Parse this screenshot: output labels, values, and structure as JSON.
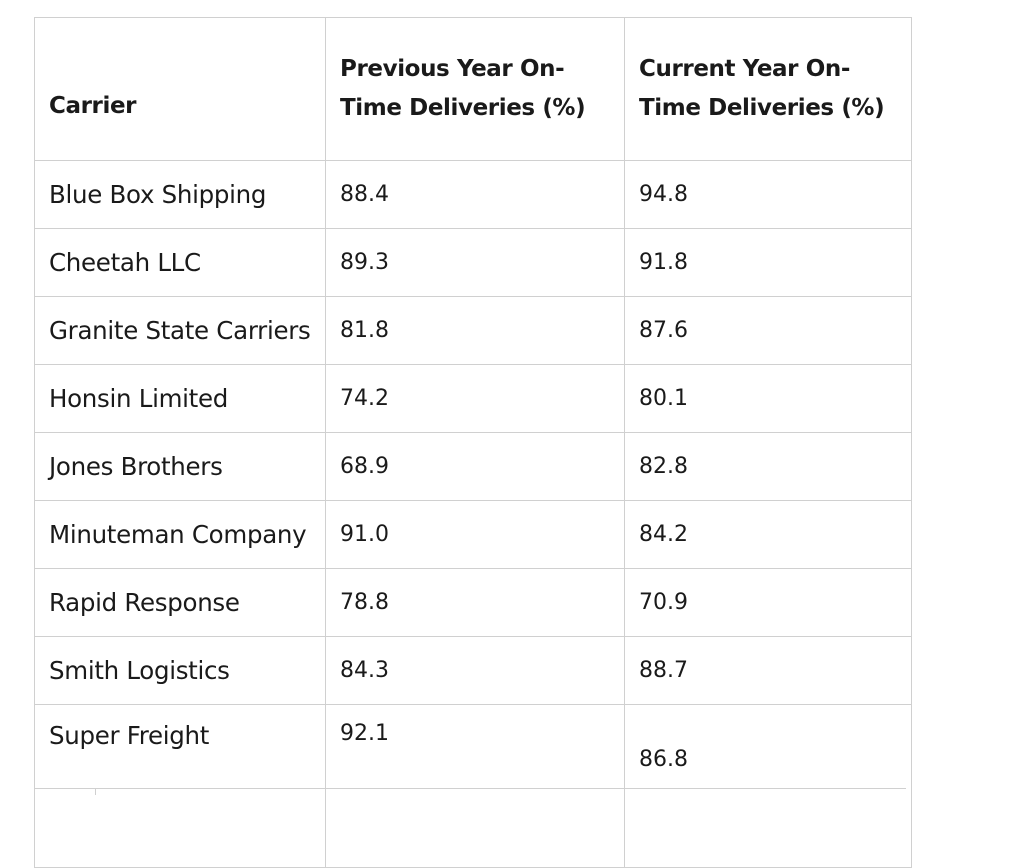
{
  "table": {
    "headers": {
      "carrier": "Carrier",
      "previous": "Previous Year On-Time Deliveries (%)",
      "current": "Current Year On-Time Deliveries (%)"
    },
    "rows": [
      {
        "carrier": "Blue Box Shipping",
        "previous": "88.4",
        "current": "94.8"
      },
      {
        "carrier": "Cheetah LLC",
        "previous": "89.3",
        "current": "91.8"
      },
      {
        "carrier": "Granite State Carriers",
        "previous": "81.8",
        "current": "87.6"
      },
      {
        "carrier": "Honsin Limited",
        "previous": "74.2",
        "current": "80.1"
      },
      {
        "carrier": "Jones Brothers",
        "previous": "68.9",
        "current": "82.8"
      },
      {
        "carrier": "Minuteman Company",
        "previous": "91.0",
        "current": "84.2"
      },
      {
        "carrier": "Rapid Response",
        "previous": "78.8",
        "current": "70.9"
      },
      {
        "carrier": "Smith Logistics",
        "previous": "84.3",
        "current": "88.7"
      },
      {
        "carrier": "Super Freight",
        "previous": "92.1",
        "current": "86.8"
      }
    ]
  },
  "colors": {
    "border": "#d0d0d0",
    "text": "#1a1a1a",
    "background": "#ffffff"
  }
}
